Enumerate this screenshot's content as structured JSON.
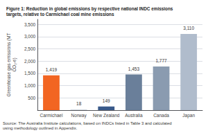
{
  "chart_data": {
    "type": "bar",
    "title": "Figure 1: Reduction in global emissions by respective national INDC emissions\ntargets, relative to Carmichael coal mine emissions",
    "categories": [
      "Carmichael",
      "Norway",
      "New Zealand",
      "Australia",
      "Canada",
      "Japan"
    ],
    "values": [
      1419,
      18,
      149,
      1453,
      1777,
      3110
    ],
    "value_labels": [
      "1,419",
      "18",
      "149",
      "1,453",
      "1,777",
      "3,110"
    ],
    "colors": [
      "#F26522",
      "#B8C4D0",
      "#3A5A8A",
      "#6A7F9A",
      "#8A9BB0",
      "#B0BCCC"
    ],
    "ylabel": "Greenhouse gas emissions (MT\nCO₂-e)",
    "ylim": [
      0,
      3700
    ],
    "yticks": [
      500,
      {
        "value": 1000,
        "label": "1,000"
      },
      {
        "value": 1500,
        "label": "1,500"
      },
      {
        "value": 2000,
        "label": "2,000"
      },
      {
        "value": 2500,
        "label": "2,500"
      },
      {
        "value": 3000,
        "label": "3,000"
      },
      {
        "value": 3500,
        "label": "3,500"
      }
    ],
    "grid": true,
    "data_labels": true,
    "annotations": [
      "Source: The Australia Institute calculations, based on INDCs listed in Table 3 and calculated\nusing methodology outlined in Appendix."
    ]
  }
}
